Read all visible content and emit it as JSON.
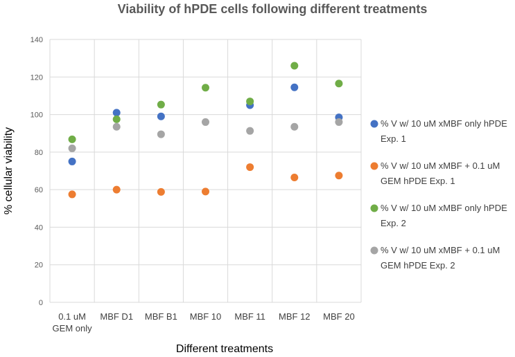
{
  "chart_data": {
    "type": "scatter",
    "title": "Viability of hPDE cells following different treatments",
    "xlabel": "Different  treatments",
    "ylabel": "% cellular viability",
    "ylim": [
      0,
      140
    ],
    "yticks": [
      0,
      20,
      40,
      60,
      80,
      100,
      120,
      140
    ],
    "grid": true,
    "legend_position": "right",
    "categories": [
      [
        "0.1 uM",
        "GEM only"
      ],
      [
        "MBF D1"
      ],
      [
        "MBF B1"
      ],
      [
        "MBF 10"
      ],
      [
        "MBF 11"
      ],
      [
        "MBF 12"
      ],
      [
        "MBF 20"
      ]
    ],
    "series": [
      {
        "name": "% V w/ 10 uM xMBF only hPDE Exp. 1",
        "legend_lines": [
          "% V w/ 10 uM xMBF only hPDE",
          "Exp. 1"
        ],
        "color": "#4472c4",
        "values": [
          75,
          101,
          99,
          null,
          105,
          114.5,
          98.5
        ]
      },
      {
        "name": "% V w/ 10 uM xMBF + 0.1 uM GEM hPDE Exp. 1",
        "legend_lines": [
          "% V w/ 10 uM xMBF + 0.1 uM",
          "GEM hPDE Exp. 1"
        ],
        "color": "#ed7d31",
        "values": [
          57.5,
          60,
          58.8,
          59,
          72,
          66.5,
          67.5
        ]
      },
      {
        "name": "% V w/ 10 uM xMBF only hPDE Exp. 2",
        "legend_lines": [
          "% V w/ 10 uM xMBF only hPDE",
          "Exp. 2"
        ],
        "color": "#70ad47",
        "values": [
          86.8,
          97.5,
          105.3,
          114.3,
          107,
          126,
          116.5
        ]
      },
      {
        "name": "% V w/ 10 uM xMBF + 0.1 uM GEM hPDE Exp. 2",
        "legend_lines": [
          "% V w/ 10 uM xMBF + 0.1 uM",
          "GEM hPDE Exp. 2"
        ],
        "color": "#a5a5a5",
        "values": [
          82,
          93.5,
          89.5,
          96,
          91.3,
          93.5,
          96
        ]
      }
    ]
  }
}
